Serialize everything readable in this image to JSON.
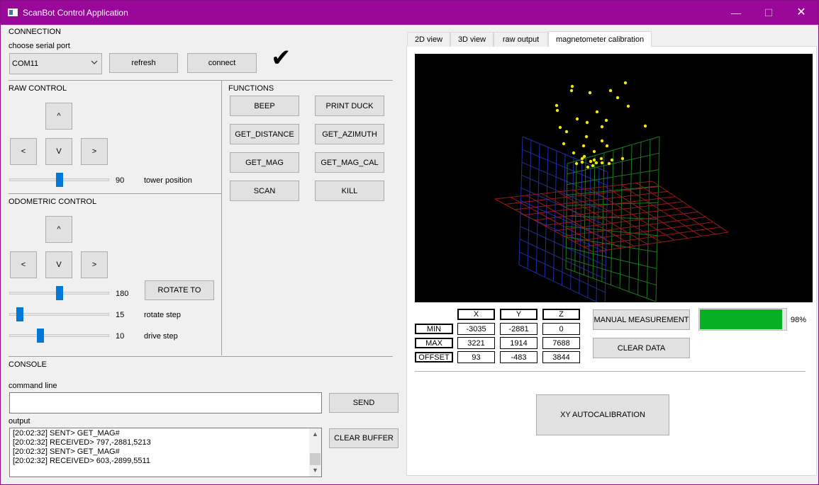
{
  "window": {
    "title": "ScanBot Control Application",
    "minimize": "—",
    "maximize": "☐",
    "close": "✕"
  },
  "connection": {
    "section": "CONNECTION",
    "port_label": "choose serial port",
    "port_value": "COM11",
    "refresh": "refresh",
    "connect": "connect",
    "status_glyph": "✔"
  },
  "raw_control": {
    "section": "RAW CONTROL",
    "up": "^",
    "left": "<",
    "down": "V",
    "right": ">",
    "tower_value": "90",
    "tower_label": "tower position",
    "tower_fraction": 0.5
  },
  "functions": {
    "section": "FUNCTIONS",
    "buttons": [
      "BEEP",
      "PRINT DUCK",
      "GET_DISTANCE",
      "GET_AZIMUTH",
      "GET_MAG",
      "GET_MAG_CAL",
      "SCAN",
      "KILL"
    ]
  },
  "odometric": {
    "section": "ODOMETRIC CONTROL",
    "up": "^",
    "left": "<",
    "down": "V",
    "right": ">",
    "angle_value": "180",
    "angle_fraction": 0.5,
    "rotate_to": "ROTATE TO",
    "rotate_step_value": "15",
    "rotate_step_label": "rotate step",
    "rotate_step_fraction": 0.08,
    "drive_step_value": "10",
    "drive_step_label": "drive step",
    "drive_step_fraction": 0.3
  },
  "console": {
    "section": "CONSOLE",
    "command_label": "command line",
    "command_value": "",
    "send": "SEND",
    "output_label": "output",
    "output_lines": [
      "[20:02:32] SENT> GET_MAG#",
      "[20:02:32] RECEIVED> 797,-2881,5213",
      "[20:02:32] SENT> GET_MAG#",
      "[20:02:32] RECEIVED> 603,-2899,5511"
    ],
    "clear_buffer": "CLEAR BUFFER"
  },
  "tabs": [
    "2D view",
    "3D view",
    "raw output",
    "magnetometer calibration"
  ],
  "active_tab": 3,
  "calibration": {
    "columns": [
      "X",
      "Y",
      "Z"
    ],
    "rows": [
      {
        "label": "MIN",
        "values": [
          "-3035",
          "-2881",
          "0"
        ]
      },
      {
        "label": "MAX",
        "values": [
          "3221",
          "1914",
          "7688"
        ]
      },
      {
        "label": "OFFSET",
        "values": [
          "93",
          "-483",
          "3844"
        ]
      }
    ],
    "manual_measurement": "MANUAL MEASUREMENT",
    "clear_data": "CLEAR DATA",
    "progress_value": 98,
    "progress_text": "98%",
    "xy_autocalibration": "XY AUTOCALIBRATION"
  },
  "colors": {
    "titlebar": "#990899",
    "accent": "#0078d7",
    "progress": "#06b025",
    "points": "#f2e60a",
    "grid_xy": "#1f2fa0",
    "grid_yz": "#1c7a22",
    "grid_xz": "#9a1a1a"
  }
}
